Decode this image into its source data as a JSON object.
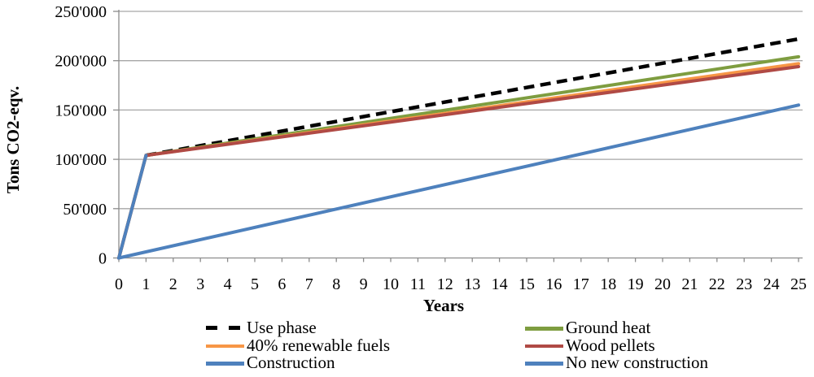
{
  "chart_data": {
    "type": "line",
    "xlabel": "Years",
    "ylabel": "Tons CO2-eqv.",
    "xlim": [
      0,
      25
    ],
    "ylim": [
      0,
      250000
    ],
    "x_ticks": [
      0,
      1,
      2,
      3,
      4,
      5,
      6,
      7,
      8,
      9,
      10,
      11,
      12,
      13,
      14,
      15,
      16,
      17,
      18,
      19,
      20,
      21,
      22,
      23,
      24,
      25
    ],
    "y_ticks": [
      0,
      50000,
      100000,
      150000,
      200000,
      250000
    ],
    "y_tick_labels": [
      "0",
      "50'000",
      "100'000",
      "150'000",
      "200'000",
      "250'000"
    ],
    "grid": "horizontal",
    "legend_position": "bottom",
    "series": [
      {
        "name": "Use phase",
        "color": "#000000",
        "dashed": true,
        "points": [
          [
            1,
            104000
          ],
          [
            25,
            222000
          ]
        ]
      },
      {
        "name": "Ground heat",
        "color": "#7E9D40",
        "dashed": false,
        "points": [
          [
            0,
            0
          ],
          [
            1,
            104000
          ],
          [
            25,
            204000
          ]
        ]
      },
      {
        "name": "40% renewable fuels",
        "color": "#F79646",
        "dashed": false,
        "points": [
          [
            0,
            0
          ],
          [
            1,
            104000
          ],
          [
            25,
            197000
          ]
        ]
      },
      {
        "name": "Wood pellets",
        "color": "#B04A45",
        "dashed": false,
        "points": [
          [
            0,
            0
          ],
          [
            1,
            104000
          ],
          [
            25,
            194000
          ]
        ]
      },
      {
        "name": "Construction",
        "color": "#4E81BD",
        "dashed": false,
        "points": [
          [
            0,
            0
          ],
          [
            1,
            104000
          ]
        ]
      },
      {
        "name": "No new construction",
        "color": "#4E81BD",
        "dashed": false,
        "points": [
          [
            0,
            0
          ],
          [
            25,
            155000
          ]
        ]
      }
    ],
    "legend_columns": [
      [
        "Use phase",
        "40% renewable fuels",
        "Construction"
      ],
      [
        "Ground heat",
        "Wood pellets",
        "No new construction"
      ]
    ],
    "colors": {
      "gridline": "#A6A6A6",
      "axis": "#8C8C8C",
      "text": "#000000"
    }
  }
}
